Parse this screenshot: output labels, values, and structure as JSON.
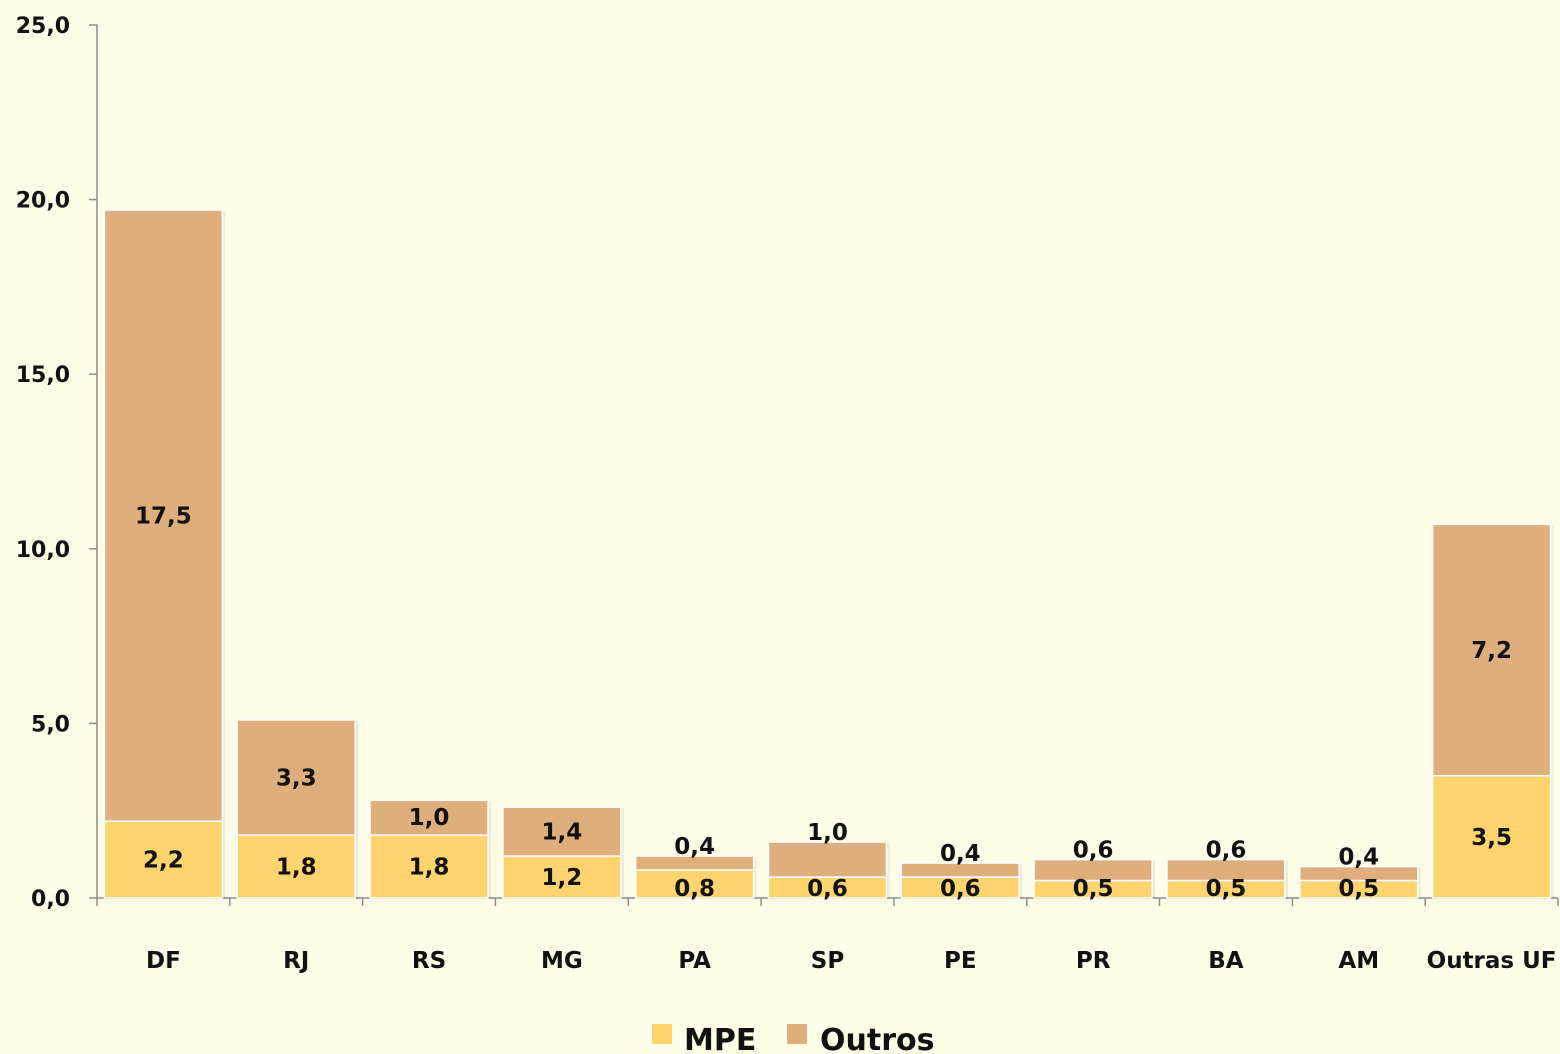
{
  "chart_data": {
    "type": "bar",
    "stacked": true,
    "categories": [
      "DF",
      "RJ",
      "RS",
      "MG",
      "PA",
      "SP",
      "PE",
      "PR",
      "BA",
      "AM",
      "Outras UF"
    ],
    "series": [
      {
        "name": "MPE",
        "color": "#FFD36E",
        "values": [
          2.2,
          1.8,
          1.8,
          1.2,
          0.8,
          0.6,
          0.6,
          0.5,
          0.5,
          0.5,
          3.5
        ],
        "labels": [
          "2,2",
          "1,8",
          "1,8",
          "1,2",
          "0,8",
          "0,6",
          "0,6",
          "0,5",
          "0,5",
          "0,5",
          "3,5"
        ]
      },
      {
        "name": "Outros",
        "color": "#DEAF7C",
        "values": [
          17.5,
          3.3,
          1.0,
          1.4,
          0.4,
          1.0,
          0.4,
          0.6,
          0.6,
          0.4,
          7.2
        ],
        "labels": [
          "17,5",
          "3,3",
          "1,0",
          "1,4",
          "0,4",
          "1,0",
          "0,4",
          "0,6",
          "0,6",
          "0,4",
          "7,2"
        ]
      }
    ],
    "ylim": [
      0,
      25
    ],
    "y_ticks": [
      0,
      5,
      10,
      15,
      20,
      25
    ],
    "y_tick_labels": [
      "0,0",
      "5,0",
      "10,0",
      "15,0",
      "20,0",
      "25,0"
    ],
    "grid": false,
    "legend_position": "bottom",
    "title": "",
    "xlabel": "",
    "ylabel": ""
  }
}
